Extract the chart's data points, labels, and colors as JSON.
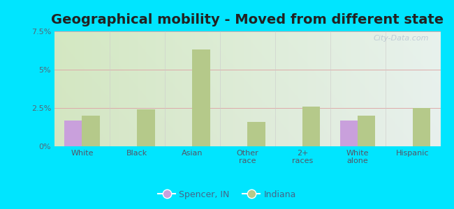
{
  "title": "Geographical mobility - Moved from different state",
  "categories": [
    "White",
    "Black",
    "Asian",
    "Other\nrace",
    "2+\nraces",
    "White\nalone",
    "Hispanic"
  ],
  "spencer_values": [
    1.7,
    0.0,
    0.0,
    0.0,
    0.0,
    1.7,
    0.0
  ],
  "indiana_values": [
    2.0,
    2.4,
    6.3,
    1.6,
    2.6,
    2.0,
    2.5
  ],
  "spencer_color": "#c9a0dc",
  "indiana_color": "#b5c98a",
  "ylim": [
    0,
    7.5
  ],
  "yticks": [
    0,
    2.5,
    5.0,
    7.5
  ],
  "ytick_labels": [
    "0%",
    "2.5%",
    "5%",
    "7.5%"
  ],
  "background_outer": "#00e5ff",
  "title_fontsize": 14,
  "legend_labels": [
    "Spencer, IN",
    "Indiana"
  ],
  "bar_width": 0.32,
  "watermark": "City-Data.com"
}
